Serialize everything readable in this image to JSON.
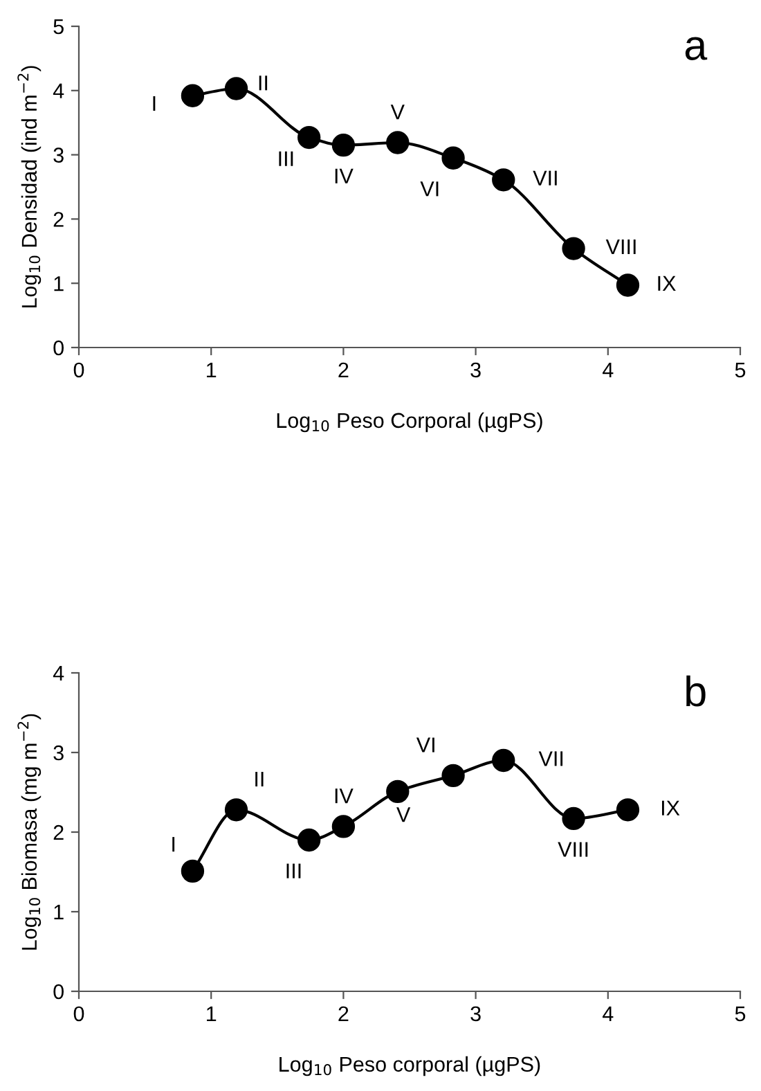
{
  "chart_data": [
    {
      "type": "line",
      "xlabel": "Log$_{10}$ Peso Corporal (µgPS)",
      "ylabel": "Log$_{10}$ Densidad (ind m$^{−2}$)",
      "x": [
        0.86,
        1.19,
        1.74,
        2.0,
        2.41,
        2.83,
        3.21,
        3.74,
        4.15
      ],
      "series": [
        {
          "color": "#000000",
          "values": [
            3.92,
            4.03,
            3.27,
            3.15,
            3.19,
            2.95,
            2.61,
            1.54,
            0.97
          ]
        }
      ],
      "xlim": [
        0,
        5
      ],
      "ylim": [
        0,
        5
      ],
      "xticks": [
        0,
        1,
        2,
        3,
        4,
        5
      ],
      "yticks": [
        0,
        1,
        2,
        3,
        4,
        5
      ],
      "marker": "circle",
      "line_style": "solid",
      "grid": false,
      "legend": false,
      "annotations": [
        "a",
        {
          "text": "I",
          "x": 0.86,
          "y": 3.92
        },
        {
          "text": "II",
          "x": 1.19,
          "y": 4.03
        },
        {
          "text": "III",
          "x": 1.74,
          "y": 3.27
        },
        {
          "text": "IV",
          "x": 2.0,
          "y": 3.15
        },
        {
          "text": "V",
          "x": 2.41,
          "y": 3.19
        },
        {
          "text": "VI",
          "x": 2.83,
          "y": 2.95
        },
        {
          "text": "VII",
          "x": 3.21,
          "y": 2.61
        },
        {
          "text": "VIII",
          "x": 3.74,
          "y": 1.54
        },
        {
          "text": "IX",
          "x": 4.15,
          "y": 0.97
        }
      ]
    },
    {
      "type": "line",
      "xlabel": "Log$_{10}$ Peso corporal (µgPS)",
      "ylabel": "Log$_{10}$ Biomasa (mg m$^{−2}$)",
      "x": [
        0.86,
        1.19,
        1.74,
        2.0,
        2.41,
        2.83,
        3.21,
        3.74,
        4.15
      ],
      "series": [
        {
          "color": "#000000",
          "values": [
            1.51,
            2.28,
            1.9,
            2.07,
            2.51,
            2.71,
            2.9,
            2.17,
            2.28
          ]
        }
      ],
      "xlim": [
        0,
        5
      ],
      "ylim": [
        0,
        4
      ],
      "xticks": [
        0,
        1,
        2,
        3,
        4,
        5
      ],
      "yticks": [
        0,
        1,
        2,
        3,
        4
      ],
      "marker": "circle",
      "line_style": "solid",
      "grid": false,
      "legend": false,
      "annotations": [
        "b",
        {
          "text": "I",
          "x": 0.86,
          "y": 1.51
        },
        {
          "text": "II",
          "x": 1.19,
          "y": 2.28
        },
        {
          "text": "III",
          "x": 1.74,
          "y": 1.9
        },
        {
          "text": "IV",
          "x": 2.0,
          "y": 2.07
        },
        {
          "text": "V",
          "x": 2.41,
          "y": 2.51
        },
        {
          "text": "VI",
          "x": 2.83,
          "y": 2.71
        },
        {
          "text": "VII",
          "x": 3.21,
          "y": 2.9
        },
        {
          "text": "VIII",
          "x": 3.74,
          "y": 2.17
        },
        {
          "text": "IX",
          "x": 4.15,
          "y": 2.28
        }
      ]
    }
  ]
}
